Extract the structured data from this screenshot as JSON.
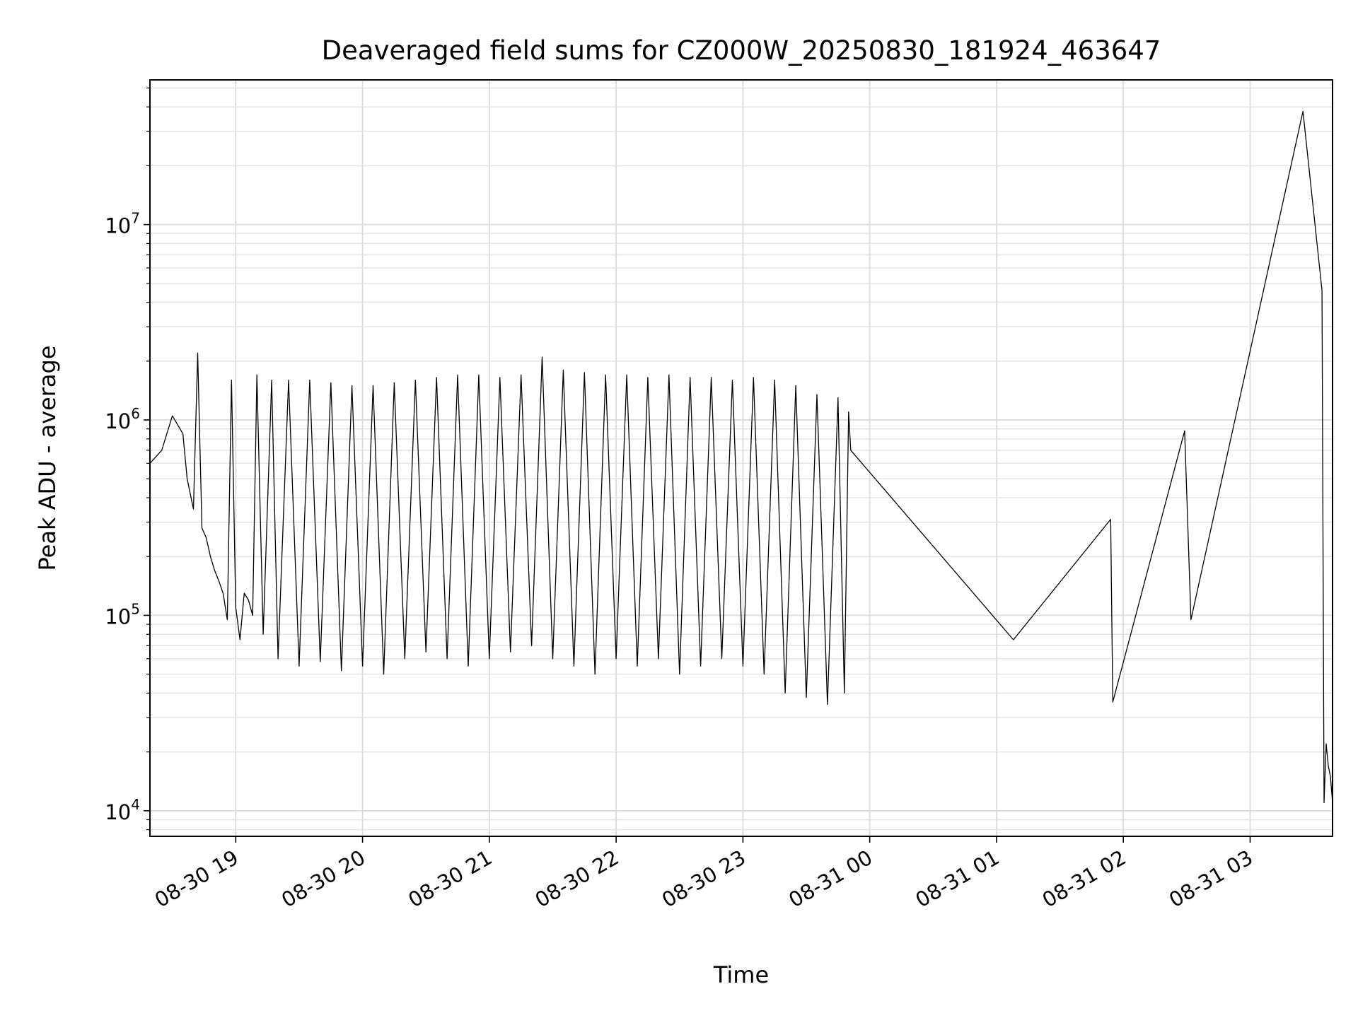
{
  "chart_data": {
    "type": "line",
    "title": "Deaveraged field sums for CZ000W_20250830_181924_463647",
    "xlabel": "Time",
    "ylabel": "Peak ADU - average",
    "yscale": "log",
    "ylim": [
      7400,
      55000000
    ],
    "xlim": [
      "2025-08-30 18:19:24",
      "2025-08-31 03:39:00"
    ],
    "grid": true,
    "line_color": "#000000",
    "x_ticks": [
      "2025-08-30 19:00",
      "2025-08-30 20:00",
      "2025-08-30 21:00",
      "2025-08-30 22:00",
      "2025-08-30 23:00",
      "2025-08-31 00:00",
      "2025-08-31 01:00",
      "2025-08-31 02:00",
      "2025-08-31 03:00"
    ],
    "x_tick_labels": [
      "08-30 19",
      "08-30 20",
      "08-30 21",
      "08-30 22",
      "08-30 23",
      "08-31 00",
      "08-31 01",
      "08-31 02",
      "08-31 03"
    ],
    "y_tick_labels": [
      {
        "value": 10000,
        "base": "10",
        "exp": "4"
      },
      {
        "value": 100000,
        "base": "10",
        "exp": "5"
      },
      {
        "value": 1000000,
        "base": "10",
        "exp": "6"
      },
      {
        "value": 10000000,
        "base": "10",
        "exp": "7"
      }
    ],
    "series": [
      {
        "x": [
          "2025-08-30 18:19:24",
          "2025-08-30 18:25:00",
          "2025-08-30 18:30:00",
          "2025-08-30 18:35:00",
          "2025-08-30 18:37:00",
          "2025-08-30 18:40:00",
          "2025-08-30 18:42:00",
          "2025-08-30 18:44:00",
          "2025-08-30 18:46:00",
          "2025-08-30 18:48:00",
          "2025-08-30 18:50:00",
          "2025-08-30 18:52:00",
          "2025-08-30 18:54:00",
          "2025-08-30 18:56:00",
          "2025-08-30 18:58:00",
          "2025-08-30 19:00:00",
          "2025-08-30 19:02:00",
          "2025-08-30 19:04:00",
          "2025-08-30 19:06:00",
          "2025-08-30 19:08:00",
          "2025-08-30 19:10:00",
          "2025-08-30 19:13:00",
          "2025-08-30 19:17:00",
          "2025-08-30 19:20:00",
          "2025-08-30 19:25:00",
          "2025-08-30 19:30:00",
          "2025-08-30 19:35:00",
          "2025-08-30 19:40:00",
          "2025-08-30 19:45:00",
          "2025-08-30 19:50:00",
          "2025-08-30 19:55:00",
          "2025-08-30 20:00:00",
          "2025-08-30 20:05:00",
          "2025-08-30 20:10:00",
          "2025-08-30 20:15:00",
          "2025-08-30 20:20:00",
          "2025-08-30 20:25:00",
          "2025-08-30 20:30:00",
          "2025-08-30 20:35:00",
          "2025-08-30 20:40:00",
          "2025-08-30 20:45:00",
          "2025-08-30 20:50:00",
          "2025-08-30 20:55:00",
          "2025-08-30 21:00:00",
          "2025-08-30 21:05:00",
          "2025-08-30 21:10:00",
          "2025-08-30 21:15:00",
          "2025-08-30 21:20:00",
          "2025-08-30 21:25:00",
          "2025-08-30 21:30:00",
          "2025-08-30 21:35:00",
          "2025-08-30 21:40:00",
          "2025-08-30 21:45:00",
          "2025-08-30 21:50:00",
          "2025-08-30 21:55:00",
          "2025-08-30 22:00:00",
          "2025-08-30 22:05:00",
          "2025-08-30 22:10:00",
          "2025-08-30 22:15:00",
          "2025-08-30 22:20:00",
          "2025-08-30 22:25:00",
          "2025-08-30 22:30:00",
          "2025-08-30 22:35:00",
          "2025-08-30 22:40:00",
          "2025-08-30 22:45:00",
          "2025-08-30 22:50:00",
          "2025-08-30 22:55:00",
          "2025-08-30 23:00:00",
          "2025-08-30 23:05:00",
          "2025-08-30 23:10:00",
          "2025-08-30 23:15:00",
          "2025-08-30 23:20:00",
          "2025-08-30 23:25:00",
          "2025-08-30 23:30:00",
          "2025-08-30 23:35:00",
          "2025-08-30 23:40:00",
          "2025-08-30 23:45:00",
          "2025-08-30 23:48:00",
          "2025-08-30 23:50:00",
          "2025-08-30 23:51:00",
          "2025-08-31 01:08:00",
          "2025-08-31 01:54:00",
          "2025-08-31 01:55:00",
          "2025-08-31 02:29:00",
          "2025-08-31 02:32:00",
          "2025-08-31 03:25:00",
          "2025-08-31 03:34:00",
          "2025-08-31 03:35:00",
          "2025-08-31 03:36:00",
          "2025-08-31 03:37:00",
          "2025-08-31 03:38:00",
          "2025-08-31 03:39:00"
        ],
        "y": [
          600000,
          700000,
          1050000,
          850000,
          500000,
          350000,
          2200000,
          280000,
          250000,
          200000,
          170000,
          150000,
          130000,
          95000,
          1600000,
          110000,
          75000,
          130000,
          120000,
          100000,
          1700000,
          80000,
          1600000,
          60000,
          1600000,
          55000,
          1600000,
          58000,
          1550000,
          52000,
          1500000,
          55000,
          1500000,
          50000,
          1550000,
          60000,
          1600000,
          65000,
          1650000,
          60000,
          1700000,
          55000,
          1700000,
          60000,
          1650000,
          65000,
          1700000,
          70000,
          2100000,
          60000,
          1800000,
          55000,
          1750000,
          50000,
          1700000,
          60000,
          1700000,
          55000,
          1650000,
          60000,
          1700000,
          50000,
          1650000,
          55000,
          1650000,
          60000,
          1600000,
          55000,
          1650000,
          50000,
          1600000,
          40000,
          1500000,
          38000,
          1350000,
          35000,
          1300000,
          40000,
          1100000,
          700000,
          75000,
          310000,
          36000,
          880000,
          95000,
          38000000,
          4600000,
          11000,
          22000,
          17000,
          15000,
          11000
        ]
      }
    ]
  }
}
